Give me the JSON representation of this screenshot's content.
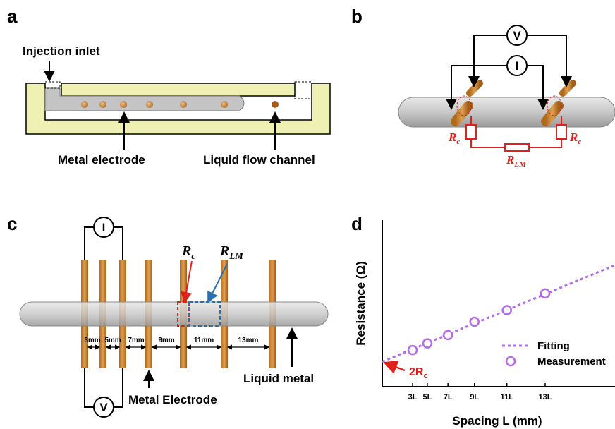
{
  "panels": {
    "a": {
      "label": "a",
      "injection_inlet": "Injection inlet",
      "metal_electrode": "Metal electrode",
      "liquid_flow_channel": "Liquid flow channel"
    },
    "b": {
      "label": "b",
      "voltmeter": "V",
      "ammeter": "I",
      "rc_left": {
        "main": "R",
        "sub": "c"
      },
      "rc_right": {
        "main": "R",
        "sub": "c"
      },
      "rlm": {
        "main": "R",
        "sub": "LM"
      }
    },
    "c": {
      "label": "c",
      "ammeter": "I",
      "voltmeter": "V",
      "rc": {
        "main": "R",
        "sub": "c"
      },
      "rlm": {
        "main": "R",
        "sub": "LM"
      },
      "spacings": [
        "3mm",
        "5mm",
        "7mm",
        "9mm",
        "11mm",
        "13mm"
      ],
      "metal_electrode": "Metal Electrode",
      "liquid_metal": "Liquid metal"
    },
    "d": {
      "label": "d"
    }
  },
  "chart_data": {
    "type": "scatter",
    "xlabel": "Spacing L  (mm)",
    "ylabel": "Resistance (Ω)",
    "xlim": [
      -7.3,
      71.7
    ],
    "ylim": [
      0,
      100
    ],
    "xticks": [
      {
        "value": 3,
        "label": "3L"
      },
      {
        "value": 8,
        "label": "5L"
      },
      {
        "value": 15,
        "label": "7L"
      },
      {
        "value": 24,
        "label": "9L"
      },
      {
        "value": 35,
        "label": "11L"
      },
      {
        "value": 48,
        "label": "13L"
      }
    ],
    "series": [
      {
        "name": "Measurement",
        "color": "#b36be8",
        "x": [
          3,
          8,
          15,
          24,
          35,
          48
        ],
        "values": [
          22,
          26,
          31,
          39,
          46,
          56
        ]
      }
    ],
    "fit": {
      "name": "Fitting",
      "color": "#b36be8",
      "x": [
        -7.3,
        71.7
      ],
      "values": [
        15,
        73
      ]
    },
    "annotation": {
      "main": "2R",
      "sub": "c"
    },
    "legend": "lower right"
  }
}
